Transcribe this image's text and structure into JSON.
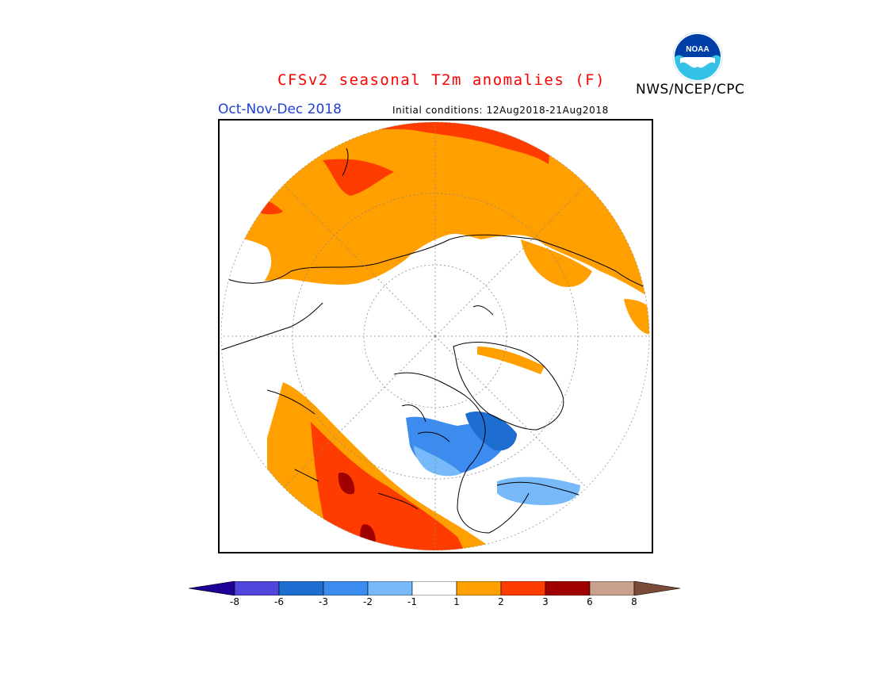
{
  "header": {
    "title": "CFSv2 seasonal T2m anomalies (F)",
    "agency": "NWS/NCEP/CPC",
    "logo_text": "NOAA",
    "season": "Oct-Nov-Dec 2018",
    "initial_conditions": "Initial conditions: 12Aug2018-21Aug2018"
  },
  "map": {
    "projection": "north-polar-stereographic",
    "variable": "2m temperature anomaly",
    "units": "F",
    "regions": [
      {
        "region": "Eurasia (northern)",
        "anomaly_category": "1 to 2",
        "color": "#ffa000"
      },
      {
        "region": "Northern Siberia",
        "anomaly_category": "2 to 3",
        "color": "#ff3c00"
      },
      {
        "region": "Europe / Scandinavia",
        "anomaly_category": "1 to 2",
        "color": "#ffa000"
      },
      {
        "region": "Western North America",
        "anomaly_category": "2 to 3",
        "color": "#ff3c00"
      },
      {
        "region": "Alaska / NW Canada",
        "anomaly_category": "3 to 6",
        "color": "#a00000"
      },
      {
        "region": "Canadian Arctic Archipelago",
        "anomaly_category": "-3 to -2",
        "color": "#3c8cf0"
      },
      {
        "region": "Hudson Bay region",
        "anomaly_category": "-2 to -1",
        "color": "#78b9fa"
      }
    ]
  },
  "colorbar": {
    "ticks": [
      "-8",
      "-6",
      "-3",
      "-2",
      "-1",
      "1",
      "2",
      "3",
      "6",
      "8"
    ],
    "colors": [
      "#1e0096",
      "#5046dc",
      "#1e6ed2",
      "#3c8cf0",
      "#78b9fa",
      "#ffffff",
      "#ffa000",
      "#ff3c00",
      "#a00000",
      "#c8a08c",
      "#7a4a3a"
    ]
  }
}
